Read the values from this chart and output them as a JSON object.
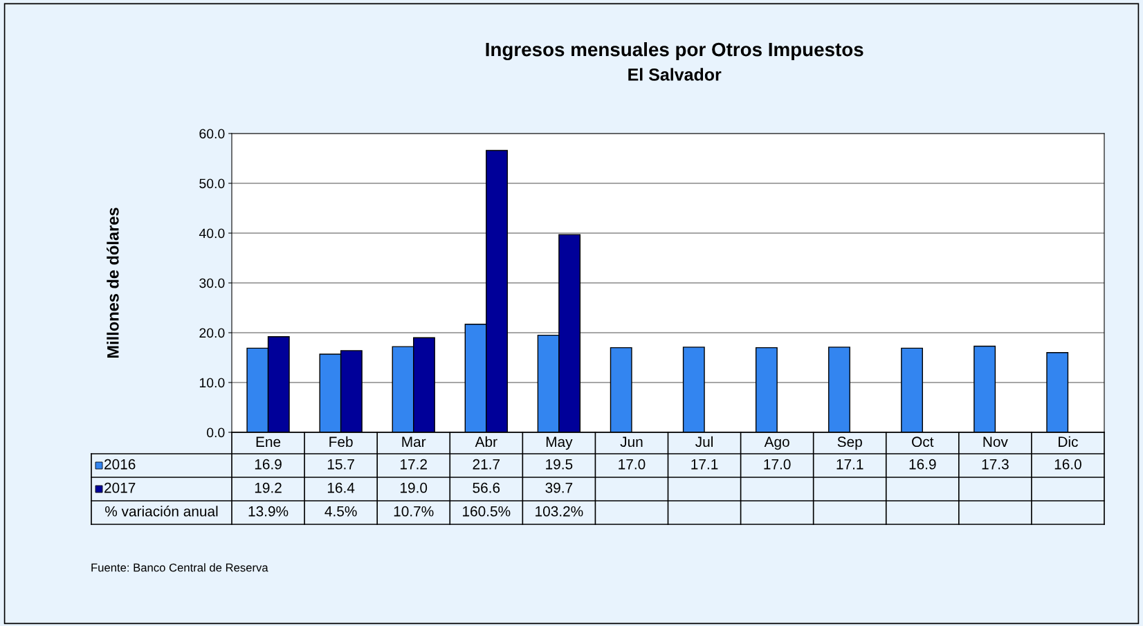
{
  "chart_data": {
    "type": "bar",
    "title": "Ingresos mensuales por Otros Impuestos",
    "subtitle": "El Salvador",
    "ylabel": "Millones de dólares",
    "categories": [
      "Ene",
      "Feb",
      "Mar",
      "Abr",
      "May",
      "Jun",
      "Jul",
      "Ago",
      "Sep",
      "Oct",
      "Nov",
      "Dic"
    ],
    "series": [
      {
        "name": "2016",
        "color": "#3385f0",
        "values": [
          16.9,
          15.7,
          17.2,
          21.7,
          19.5,
          17.0,
          17.1,
          17.0,
          17.1,
          16.9,
          17.3,
          16.0
        ],
        "value_labels": [
          "16.9",
          "15.7",
          "17.2",
          "21.7",
          "19.5",
          "17.0",
          "17.1",
          "17.0",
          "17.1",
          "16.9",
          "17.3",
          "16.0"
        ]
      },
      {
        "name": "2017",
        "color": "#000099",
        "values": [
          19.2,
          16.4,
          19.0,
          56.6,
          39.7,
          null,
          null,
          null,
          null,
          null,
          null,
          null
        ],
        "value_labels": [
          "19.2",
          "16.4",
          "19.0",
          "56.6",
          "39.7",
          null,
          null,
          null,
          null,
          null,
          null,
          null
        ]
      }
    ],
    "legend": "bottom left",
    "ylim": [
      0,
      60
    ],
    "yticks": [
      {
        "value": 0,
        "label": "0.0"
      },
      {
        "value": 10,
        "label": "10.0"
      },
      {
        "value": 20,
        "label": "20.0"
      },
      {
        "value": 30,
        "label": "30.0"
      },
      {
        "value": 40,
        "label": "40.0"
      },
      {
        "value": 50,
        "label": "50.0"
      },
      {
        "value": 60,
        "label": "60.0"
      }
    ],
    "grid": "y",
    "annotations": [
      "% variación anual",
      "13.9%",
      "4.5%",
      "10.7%",
      "160.5%",
      "103.2%",
      "Fuente: Banco Central de Reserva"
    ]
  }
}
